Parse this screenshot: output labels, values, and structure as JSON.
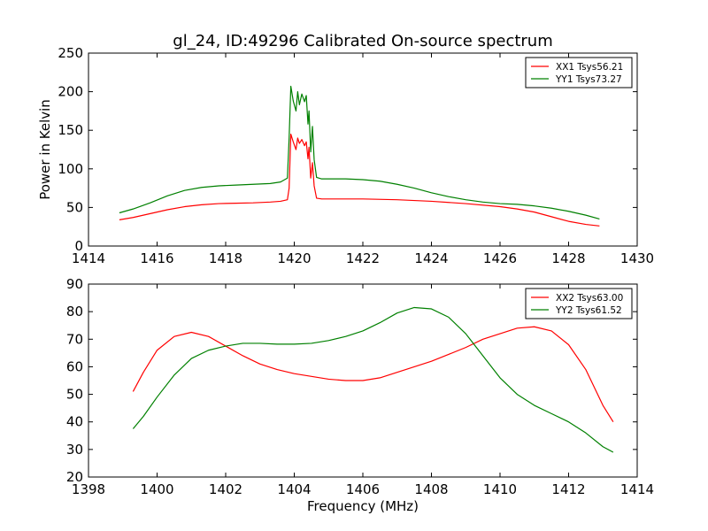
{
  "colors": {
    "red": "#ff0000",
    "green": "#008000"
  },
  "chart_data": [
    {
      "type": "line",
      "title": "gl_24, ID:49296 Calibrated On-source spectrum",
      "xlabel": "",
      "ylabel": "Power in Kelvin",
      "xlim": [
        1414,
        1430
      ],
      "ylim": [
        0,
        250
      ],
      "xticks": [
        1414,
        1416,
        1418,
        1420,
        1422,
        1424,
        1426,
        1428,
        1430
      ],
      "yticks": [
        0,
        50,
        100,
        150,
        200,
        250
      ],
      "legend": "top-right",
      "series": [
        {
          "name": "XX1 Tsys56.21",
          "color": "#ff0000",
          "points": [
            [
              1414.9,
              34
            ],
            [
              1415.3,
              37
            ],
            [
              1415.8,
              42
            ],
            [
              1416.3,
              47
            ],
            [
              1416.8,
              51
            ],
            [
              1417.3,
              53.5
            ],
            [
              1417.8,
              55
            ],
            [
              1418.3,
              55.5
            ],
            [
              1418.8,
              56
            ],
            [
              1419.3,
              57
            ],
            [
              1419.6,
              58
            ],
            [
              1419.8,
              60
            ],
            [
              1419.85,
              75
            ],
            [
              1419.9,
              145
            ],
            [
              1419.97,
              135
            ],
            [
              1420.05,
              125
            ],
            [
              1420.1,
              140
            ],
            [
              1420.15,
              133
            ],
            [
              1420.22,
              138
            ],
            [
              1420.3,
              130
            ],
            [
              1420.35,
              135
            ],
            [
              1420.4,
              113
            ],
            [
              1420.43,
              128
            ],
            [
              1420.48,
              88
            ],
            [
              1420.53,
              108
            ],
            [
              1420.58,
              78
            ],
            [
              1420.65,
              62
            ],
            [
              1420.8,
              61
            ],
            [
              1421.5,
              61
            ],
            [
              1422.0,
              61
            ],
            [
              1423.0,
              60
            ],
            [
              1424.0,
              58
            ],
            [
              1425.0,
              55
            ],
            [
              1426.0,
              51
            ],
            [
              1426.5,
              48
            ],
            [
              1427.0,
              44
            ],
            [
              1427.5,
              38
            ],
            [
              1428.0,
              32
            ],
            [
              1428.5,
              28
            ],
            [
              1428.9,
              26
            ]
          ]
        },
        {
          "name": "YY1 Tsys73.27",
          "color": "#008000",
          "points": [
            [
              1414.9,
              43
            ],
            [
              1415.3,
              48
            ],
            [
              1415.8,
              56
            ],
            [
              1416.3,
              65
            ],
            [
              1416.8,
              72
            ],
            [
              1417.3,
              76
            ],
            [
              1417.8,
              78
            ],
            [
              1418.3,
              79
            ],
            [
              1418.8,
              80
            ],
            [
              1419.3,
              81
            ],
            [
              1419.6,
              83
            ],
            [
              1419.8,
              88
            ],
            [
              1419.85,
              140
            ],
            [
              1419.9,
              207
            ],
            [
              1419.97,
              188
            ],
            [
              1420.05,
              175
            ],
            [
              1420.1,
              200
            ],
            [
              1420.15,
              183
            ],
            [
              1420.22,
              197
            ],
            [
              1420.3,
              187
            ],
            [
              1420.35,
              195
            ],
            [
              1420.4,
              158
            ],
            [
              1420.43,
              175
            ],
            [
              1420.48,
              122
            ],
            [
              1420.53,
              155
            ],
            [
              1420.58,
              112
            ],
            [
              1420.65,
              89
            ],
            [
              1420.8,
              87
            ],
            [
              1421.5,
              87
            ],
            [
              1422.0,
              86
            ],
            [
              1422.5,
              84
            ],
            [
              1423.0,
              80
            ],
            [
              1423.5,
              75
            ],
            [
              1424.0,
              69
            ],
            [
              1424.5,
              64
            ],
            [
              1425.0,
              60
            ],
            [
              1425.5,
              57
            ],
            [
              1426.0,
              55
            ],
            [
              1426.5,
              54
            ],
            [
              1427.0,
              52
            ],
            [
              1427.5,
              49
            ],
            [
              1428.0,
              45
            ],
            [
              1428.5,
              40
            ],
            [
              1428.9,
              35
            ]
          ]
        }
      ]
    },
    {
      "type": "line",
      "title": "",
      "xlabel": "Frequency (MHz)",
      "ylabel": "",
      "xlim": [
        1398,
        1414
      ],
      "ylim": [
        20,
        90
      ],
      "xticks": [
        1398,
        1400,
        1402,
        1404,
        1406,
        1408,
        1410,
        1412,
        1414
      ],
      "yticks": [
        20,
        30,
        40,
        50,
        60,
        70,
        80,
        90
      ],
      "legend": "top-right",
      "series": [
        {
          "name": "XX2 Tsys63.00",
          "color": "#ff0000",
          "points": [
            [
              1399.3,
              51
            ],
            [
              1399.6,
              58
            ],
            [
              1400.0,
              66
            ],
            [
              1400.5,
              71
            ],
            [
              1401.0,
              72.5
            ],
            [
              1401.5,
              71
            ],
            [
              1402.0,
              67.5
            ],
            [
              1402.5,
              64
            ],
            [
              1403.0,
              61
            ],
            [
              1403.5,
              59
            ],
            [
              1404.0,
              57.5
            ],
            [
              1404.5,
              56.5
            ],
            [
              1405.0,
              55.5
            ],
            [
              1405.5,
              55
            ],
            [
              1406.0,
              55
            ],
            [
              1406.5,
              56
            ],
            [
              1407.0,
              58
            ],
            [
              1407.5,
              60
            ],
            [
              1408.0,
              62
            ],
            [
              1408.5,
              64.5
            ],
            [
              1409.0,
              67
            ],
            [
              1409.5,
              70
            ],
            [
              1410.0,
              72
            ],
            [
              1410.5,
              74
            ],
            [
              1411.0,
              74.5
            ],
            [
              1411.5,
              73
            ],
            [
              1412.0,
              68
            ],
            [
              1412.5,
              59
            ],
            [
              1413.0,
              46
            ],
            [
              1413.3,
              40
            ]
          ]
        },
        {
          "name": "YY2 Tsys61.52",
          "color": "#008000",
          "points": [
            [
              1399.3,
              37.5
            ],
            [
              1399.6,
              42
            ],
            [
              1400.0,
              49
            ],
            [
              1400.5,
              57
            ],
            [
              1401.0,
              63
            ],
            [
              1401.5,
              66
            ],
            [
              1402.0,
              67.5
            ],
            [
              1402.5,
              68.5
            ],
            [
              1403.0,
              68.5
            ],
            [
              1403.5,
              68.2
            ],
            [
              1404.0,
              68.2
            ],
            [
              1404.5,
              68.5
            ],
            [
              1405.0,
              69.5
            ],
            [
              1405.5,
              71
            ],
            [
              1406.0,
              73
            ],
            [
              1406.5,
              76
            ],
            [
              1407.0,
              79.5
            ],
            [
              1407.5,
              81.5
            ],
            [
              1408.0,
              81
            ],
            [
              1408.5,
              78
            ],
            [
              1409.0,
              72
            ],
            [
              1409.5,
              64
            ],
            [
              1410.0,
              56
            ],
            [
              1410.5,
              50
            ],
            [
              1411.0,
              46
            ],
            [
              1411.5,
              43
            ],
            [
              1412.0,
              40
            ],
            [
              1412.5,
              36
            ],
            [
              1413.0,
              31
            ],
            [
              1413.3,
              29
            ]
          ]
        }
      ]
    }
  ]
}
